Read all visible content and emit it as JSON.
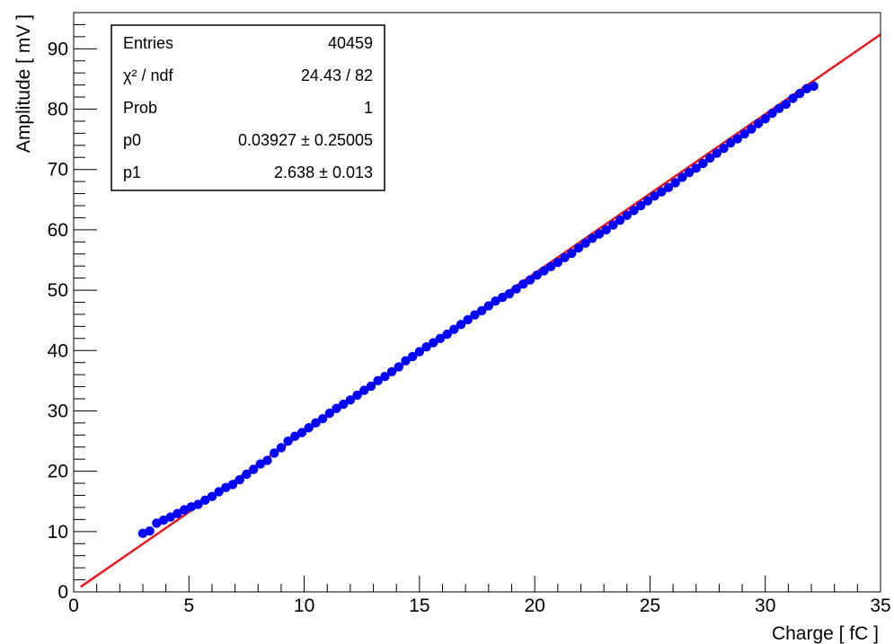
{
  "chart_data": {
    "type": "scatter",
    "title": "",
    "xlabel": "Charge [ fC ]",
    "ylabel": "Amplitude [ mV ]",
    "xlim": [
      0,
      35
    ],
    "ylim": [
      0,
      96
    ],
    "x_ticks": [
      0,
      5,
      10,
      15,
      20,
      25,
      30,
      35
    ],
    "y_ticks": [
      0,
      10,
      20,
      30,
      40,
      50,
      60,
      70,
      80,
      90
    ],
    "x_tick_labels": [
      "0",
      "5",
      "10",
      "15",
      "20",
      "25",
      "30",
      "35"
    ],
    "y_tick_labels": [
      "0",
      "10",
      "20",
      "30",
      "40",
      "50",
      "60",
      "70",
      "80",
      "90"
    ],
    "grid": false,
    "legend": "none",
    "series": [
      {
        "x": [
          3.0,
          3.3,
          3.6,
          3.9,
          4.2,
          4.5,
          4.8,
          5.1,
          5.4,
          5.7,
          6.0,
          6.3,
          6.6,
          6.9,
          7.2,
          7.5,
          7.8,
          8.1,
          8.4,
          8.7,
          9.0,
          9.3,
          9.6,
          9.9,
          10.2,
          10.5,
          10.8,
          11.1,
          11.4,
          11.7,
          12.0,
          12.3,
          12.6,
          12.9,
          13.2,
          13.5,
          13.8,
          14.1,
          14.4,
          14.7,
          15.0,
          15.3,
          15.6,
          15.9,
          16.2,
          16.5,
          16.8,
          17.1,
          17.4,
          17.7,
          18.0,
          18.3,
          18.6,
          18.9,
          19.2,
          19.5,
          19.8,
          20.1,
          20.4,
          20.7,
          21.0,
          21.3,
          21.6,
          21.9,
          22.2,
          22.5,
          22.8,
          23.1,
          23.4,
          23.7,
          24.0,
          24.3,
          24.6,
          24.9,
          25.2,
          25.5,
          25.8,
          26.1,
          26.4,
          26.7,
          27.0,
          27.3,
          27.6,
          27.9,
          28.2,
          28.5,
          28.8,
          29.1,
          29.4,
          29.7,
          30.0,
          30.3,
          30.6,
          30.9,
          31.2,
          31.5,
          31.8,
          32.1
        ],
        "y": [
          9.7,
          10.1,
          11.4,
          11.9,
          12.4,
          13.0,
          13.6,
          14.1,
          14.5,
          15.2,
          15.8,
          16.6,
          17.3,
          17.8,
          18.6,
          19.5,
          20.3,
          21.2,
          21.8,
          23.0,
          23.9,
          25.0,
          25.8,
          26.4,
          27.2,
          28.0,
          28.7,
          29.6,
          30.4,
          31.1,
          31.8,
          32.6,
          33.4,
          34.1,
          35.0,
          35.7,
          36.5,
          37.3,
          38.3,
          39.0,
          39.8,
          40.6,
          41.3,
          42.0,
          42.7,
          43.5,
          44.3,
          45.1,
          45.9,
          46.6,
          47.4,
          48.2,
          48.8,
          49.4,
          50.2,
          51.0,
          51.7,
          52.5,
          53.2,
          53.9,
          54.6,
          55.4,
          56.1,
          57.0,
          57.8,
          58.6,
          59.3,
          60.0,
          60.8,
          61.6,
          62.4,
          63.2,
          64.0,
          64.8,
          65.6,
          66.3,
          67.0,
          67.8,
          68.7,
          69.5,
          70.2,
          71.0,
          71.9,
          72.7,
          73.5,
          74.4,
          75.1,
          75.9,
          76.7,
          77.6,
          78.4,
          79.3,
          80.1,
          80.8,
          81.8,
          82.6,
          83.4,
          83.8
        ]
      }
    ],
    "fit": {
      "function": "linear",
      "p0": 0.03927,
      "p1": 2.638,
      "x_range": [
        0.3,
        35
      ]
    },
    "colors": {
      "markers": "#0000ff",
      "fit_line": "#e8161e",
      "axis": "#000000"
    },
    "stats_box": {
      "position": "top-left",
      "rows": [
        {
          "label": "Entries",
          "value": "40459"
        },
        {
          "label": "χ² / ndf",
          "value": "24.43 / 82"
        },
        {
          "label": "Prob",
          "value": "1"
        },
        {
          "label": "p0",
          "value": "0.03927 ± 0.25005"
        },
        {
          "label": "p1",
          "value": "2.638 ± 0.013"
        }
      ]
    }
  }
}
